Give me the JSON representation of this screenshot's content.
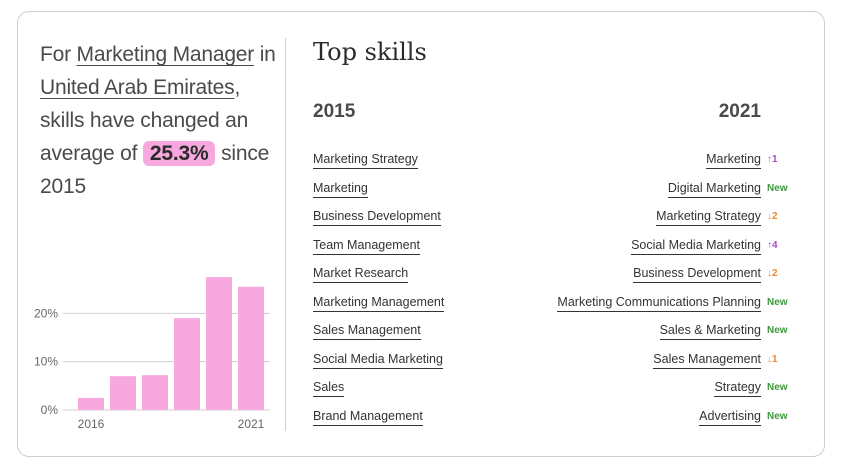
{
  "headline": {
    "prefix": "For",
    "job_title": "Marketing Manager",
    "in_word": "in",
    "location": "United Arab Emirates",
    "comma": ",",
    "middle": "skills have changed an average of",
    "highlight": "25.3%",
    "suffix": "since 2015"
  },
  "colors": {
    "bar": "#f7a8de",
    "up": "#a64cc9",
    "down": "#e8892b",
    "new": "#3c9a3c"
  },
  "chart_data": {
    "type": "bar",
    "categories": [
      "2016",
      "2017",
      "2018",
      "2019",
      "2020",
      "2021"
    ],
    "values": [
      2.5,
      7,
      7.2,
      19,
      27.5,
      25.5
    ],
    "x_tick_labels": [
      "2016",
      "2021"
    ],
    "y_tick_labels": [
      "0%",
      "10%",
      "20%"
    ],
    "y_ticks": [
      0,
      10,
      20
    ],
    "ylim": [
      0,
      30
    ],
    "grid": true
  },
  "top_skills": {
    "title": "Top skills",
    "year_left": "2015",
    "year_right": "2021",
    "skills_2015": [
      "Marketing Strategy",
      "Marketing",
      "Business Development",
      "Team Management",
      "Market Research",
      "Marketing Management",
      "Sales Management",
      "Social Media Marketing",
      "Sales",
      "Brand Management"
    ],
    "skills_2021": [
      {
        "name": "Marketing",
        "change": "↑1",
        "dir": "up"
      },
      {
        "name": "Digital Marketing",
        "change": "New",
        "dir": "new"
      },
      {
        "name": "Marketing Strategy",
        "change": "↓2",
        "dir": "down"
      },
      {
        "name": "Social Media Marketing",
        "change": "↑4",
        "dir": "up"
      },
      {
        "name": "Business Development",
        "change": "↓2",
        "dir": "down"
      },
      {
        "name": "Marketing Communications Planning",
        "change": "New",
        "dir": "new"
      },
      {
        "name": "Sales & Marketing",
        "change": "New",
        "dir": "new"
      },
      {
        "name": "Sales Management",
        "change": "↓1",
        "dir": "down"
      },
      {
        "name": "Strategy",
        "change": "New",
        "dir": "new"
      },
      {
        "name": "Advertising",
        "change": "New",
        "dir": "new"
      }
    ]
  }
}
